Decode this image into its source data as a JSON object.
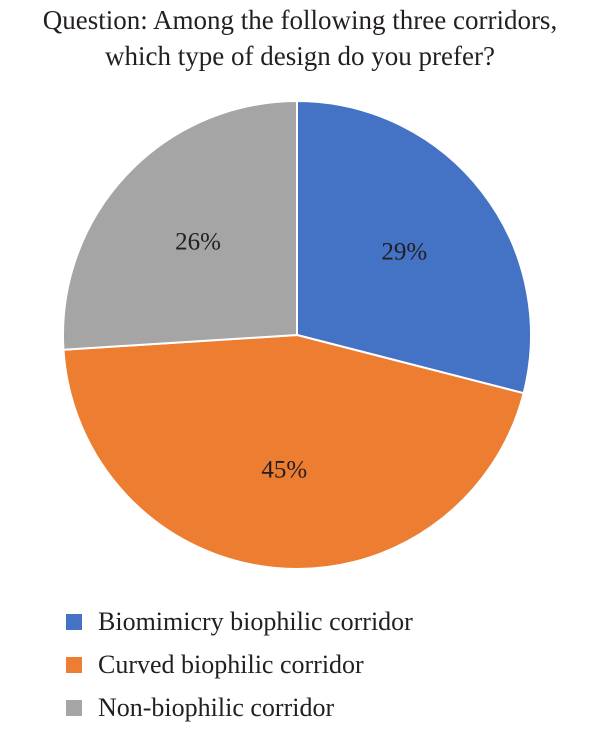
{
  "chart_data": {
    "type": "pie",
    "title": "Question: Among the following three corridors,",
    "subtitle": "which type of design do you prefer?",
    "start_angle_deg": 0,
    "direction": "clockwise",
    "legend_position": "bottom-left",
    "slices": [
      {
        "name": "Biomimicry biophilic corridor",
        "value": 29,
        "label": "29%",
        "color": "#4472c4"
      },
      {
        "name": "Curved biophilic corridor",
        "value": 45,
        "label": "45%",
        "color": "#ed7d31"
      },
      {
        "name": "Non-biophilic corridor",
        "value": 26,
        "label": "26%",
        "color": "#a5a5a5"
      }
    ]
  }
}
